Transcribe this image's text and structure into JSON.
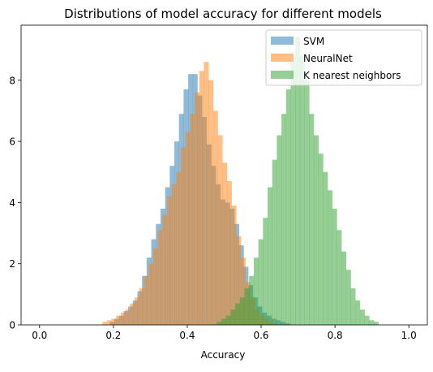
{
  "chart_data": {
    "type": "histogram",
    "title": "Distributions of model accuracy for different models",
    "xlabel": "Accuracy",
    "ylabel": "",
    "xlim": [
      -0.05,
      1.05
    ],
    "ylim": [
      0,
      9.8
    ],
    "xticks": [
      0.0,
      0.2,
      0.4,
      0.6,
      0.8,
      1.0
    ],
    "xtick_labels": [
      "0.0",
      "0.2",
      "0.4",
      "0.6",
      "0.8",
      "1.0"
    ],
    "yticks": [
      0,
      2,
      4,
      6,
      8
    ],
    "ytick_labels": [
      "0",
      "2",
      "4",
      "6",
      "8"
    ],
    "grid": false,
    "legend_position": "upper right",
    "bar_alpha": 0.5,
    "series": [
      {
        "name": "SVM",
        "color": "#1f77b4",
        "bin_start": 0.19,
        "bin_width": 0.0125,
        "heights": [
          0.1,
          0.2,
          0.3,
          0.45,
          0.6,
          0.8,
          1.1,
          1.6,
          2.2,
          2.8,
          3.3,
          3.8,
          4.5,
          5.2,
          6.0,
          6.9,
          7.7,
          8.2,
          8.2,
          7.5,
          6.8,
          5.9,
          5.2,
          4.6,
          4.1,
          4.0,
          3.8,
          3.3,
          2.6,
          1.9,
          1.3,
          0.9,
          0.6,
          0.4,
          0.3,
          0.2,
          0.15,
          0.1,
          0.05
        ]
      },
      {
        "name": "NeuralNet",
        "color": "#ff7f0e",
        "bin_start": 0.17,
        "bin_width": 0.0125,
        "heights": [
          0.1,
          0.15,
          0.2,
          0.3,
          0.4,
          0.5,
          0.7,
          0.9,
          1.2,
          1.6,
          2.0,
          2.5,
          3.1,
          3.6,
          4.2,
          4.6,
          5.0,
          5.8,
          6.3,
          6.9,
          7.6,
          8.3,
          8.6,
          8.0,
          7.0,
          6.2,
          5.3,
          4.7,
          3.9,
          2.9,
          2.2,
          1.4,
          0.9,
          0.5,
          0.3,
          0.2,
          0.1,
          0.05
        ]
      },
      {
        "name": "K nearest neighbors",
        "color": "#2ca02c",
        "bin_start": 0.48,
        "bin_width": 0.0125,
        "heights": [
          0.1,
          0.2,
          0.3,
          0.5,
          0.7,
          0.9,
          1.2,
          1.6,
          2.2,
          2.8,
          3.5,
          4.5,
          5.4,
          6.2,
          6.9,
          7.7,
          8.6,
          9.4,
          8.8,
          8.0,
          6.9,
          6.2,
          5.6,
          5.0,
          4.4,
          3.8,
          3.1,
          2.4,
          1.8,
          1.2,
          0.8,
          0.5,
          0.3,
          0.15,
          0.1
        ]
      }
    ]
  }
}
